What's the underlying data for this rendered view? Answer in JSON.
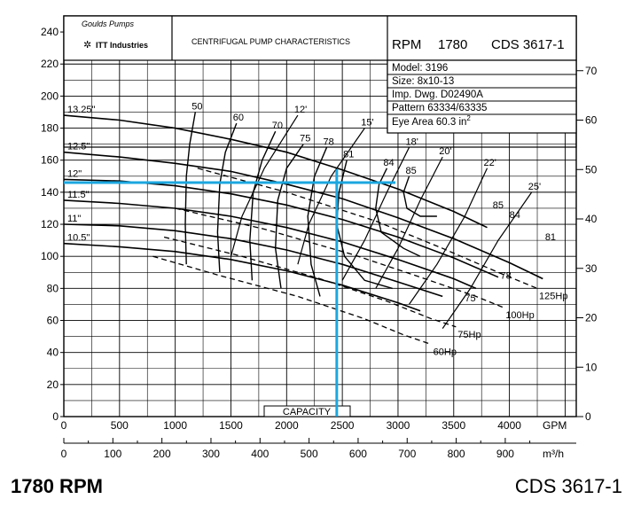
{
  "header": {
    "logo_text": "Goulds Pumps",
    "logo_sub": "ITT Industries",
    "title": "CENTRIFUGAL PUMP CHARACTERISTICS",
    "rpm_label": "RPM",
    "rpm_value": "1780",
    "model_code": "CDS 3617-1",
    "info": {
      "model": "Model: 3196",
      "size": "Size: 8x10-13",
      "imp_dwg": "Imp. Dwg. D02490A",
      "pattern": "Pattern 63334/63335",
      "eye_area": "Eye Area  60.3  in",
      "eye_area_sup": "2"
    }
  },
  "footer": {
    "rpm": "1780 RPM",
    "model_code": "CDS 3617-1"
  },
  "chart_data": {
    "type": "line",
    "xlabel": "GPM",
    "xlabel_secondary": "m³/h",
    "x_center_label": "CAPACITY",
    "xlim": [
      0,
      4600
    ],
    "ylim": [
      0,
      250
    ],
    "x_ticks": [
      0,
      500,
      1000,
      1500,
      2000,
      2500,
      3000,
      3500,
      4000
    ],
    "x_ticks_secondary": [
      0,
      100,
      200,
      300,
      400,
      500,
      600,
      700,
      800,
      900
    ],
    "y_ticks_left": [
      0,
      20,
      40,
      60,
      80,
      100,
      120,
      140,
      160,
      180,
      200,
      220,
      240
    ],
    "y_ticks_right": [
      0,
      10,
      20,
      30,
      40,
      50,
      60,
      70
    ],
    "grid": true,
    "head_curves": [
      {
        "name": "13.25\"",
        "x": [
          0,
          500,
          1000,
          1500,
          2000,
          2500,
          3000,
          3500,
          3800
        ],
        "y": [
          188,
          185,
          180,
          173,
          165,
          154,
          142,
          128,
          118
        ]
      },
      {
        "name": "12.5\"",
        "x": [
          0,
          500,
          1000,
          1500,
          2000,
          2500,
          3000,
          3500,
          4000,
          4300
        ],
        "y": [
          165,
          162,
          158,
          153,
          145,
          136,
          124,
          111,
          96,
          86
        ]
      },
      {
        "name": "12\"",
        "x": [
          0,
          500,
          1000,
          1500,
          2000,
          2500,
          3000,
          3500,
          3900
        ],
        "y": [
          148,
          147,
          144,
          139,
          132,
          123,
          112,
          99,
          87
        ]
      },
      {
        "name": "11.5\"",
        "x": [
          0,
          500,
          1000,
          1500,
          2000,
          2500,
          3000,
          3500,
          3700
        ],
        "y": [
          135,
          133,
          130,
          125,
          118,
          109,
          98,
          86,
          80
        ]
      },
      {
        "name": "11\"",
        "x": [
          0,
          500,
          1000,
          1500,
          2000,
          2500,
          3000,
          3400
        ],
        "y": [
          120,
          119,
          116,
          111,
          104,
          95,
          84,
          75
        ]
      },
      {
        "name": "10.5\"",
        "x": [
          0,
          500,
          1000,
          1500,
          2000,
          2500,
          3000,
          3200
        ],
        "y": [
          108,
          106,
          103,
          98,
          91,
          82,
          71,
          66
        ]
      }
    ],
    "efficiency_curves": [
      {
        "name": "50",
        "x": [
          1180,
          1130,
          1100,
          1090,
          1100
        ],
        "y": [
          190,
          170,
          150,
          120,
          95
        ]
      },
      {
        "name": "60",
        "x": [
          1550,
          1450,
          1400,
          1380,
          1400
        ],
        "y": [
          183,
          165,
          145,
          115,
          90
        ]
      },
      {
        "name": "70",
        "x": [
          1900,
          1780,
          1700,
          1670,
          1690
        ],
        "y": [
          178,
          160,
          140,
          110,
          85
        ]
      },
      {
        "name": "75",
        "x": [
          2150,
          2000,
          1920,
          1900,
          1950
        ],
        "y": [
          170,
          155,
          135,
          105,
          80
        ]
      },
      {
        "name": "78",
        "x": [
          2360,
          2250,
          2190,
          2220,
          2300
        ],
        "y": [
          168,
          150,
          125,
          95,
          75
        ]
      },
      {
        "name": "81",
        "x": [
          2540,
          2470,
          2450,
          2520,
          2700,
          2950
        ],
        "y": [
          160,
          140,
          120,
          100,
          85,
          80
        ]
      },
      {
        "name": "84",
        "x": [
          2900,
          2830,
          2800,
          2850,
          3050,
          3200
        ],
        "y": [
          155,
          145,
          130,
          115,
          105,
          100
        ]
      },
      {
        "name": "85",
        "x": [
          3100,
          3050,
          3080,
          3200,
          3350
        ],
        "y": [
          150,
          140,
          130,
          125,
          125
        ]
      }
    ],
    "efficiency_labels_right": [
      {
        "name": "85",
        "x": 3850,
        "y": 130
      },
      {
        "name": "84",
        "x": 4000,
        "y": 124
      },
      {
        "name": "81",
        "x": 4320,
        "y": 110
      },
      {
        "name": "78",
        "x": 3920,
        "y": 86
      },
      {
        "name": "75",
        "x": 3600,
        "y": 72
      }
    ],
    "npsh_curves": [
      {
        "name": "12'",
        "x": [
          2100,
          1800,
          1600,
          1500
        ],
        "y": [
          188,
          155,
          125,
          100
        ]
      },
      {
        "name": "15'",
        "x": [
          2700,
          2400,
          2200,
          2100
        ],
        "y": [
          180,
          150,
          120,
          95
        ]
      },
      {
        "name": "18'",
        "x": [
          3100,
          2900,
          2700,
          2500
        ],
        "y": [
          168,
          140,
          110,
          85
        ]
      },
      {
        "name": "20'",
        "x": [
          3400,
          3200,
          3000,
          2800
        ],
        "y": [
          162,
          135,
          105,
          80
        ]
      },
      {
        "name": "22'",
        "x": [
          3800,
          3600,
          3350,
          3100
        ],
        "y": [
          155,
          125,
          95,
          70
        ]
      },
      {
        "name": "25'",
        "x": [
          4200,
          3900,
          3650,
          3400
        ],
        "y": [
          140,
          110,
          80,
          55
        ]
      }
    ],
    "power_curves": [
      {
        "name": "125Hp",
        "x": [
          1200,
          2000,
          2800,
          3400,
          3900,
          4250
        ],
        "y": [
          155,
          140,
          122,
          105,
          90,
          80
        ]
      },
      {
        "name": "100Hp",
        "x": [
          1000,
          1800,
          2600,
          3200,
          3700,
          3950
        ],
        "y": [
          130,
          117,
          101,
          87,
          75,
          68
        ]
      },
      {
        "name": "75Hp",
        "x": [
          900,
          1600,
          2300,
          2900,
          3300,
          3520
        ],
        "y": [
          112,
          100,
          86,
          72,
          61,
          56
        ]
      },
      {
        "name": "60Hp",
        "x": [
          800,
          1400,
          2100,
          2700,
          3050,
          3300
        ],
        "y": [
          100,
          88,
          75,
          61,
          51,
          45
        ]
      }
    ],
    "highlight": {
      "x": 2450,
      "y": 146
    }
  }
}
